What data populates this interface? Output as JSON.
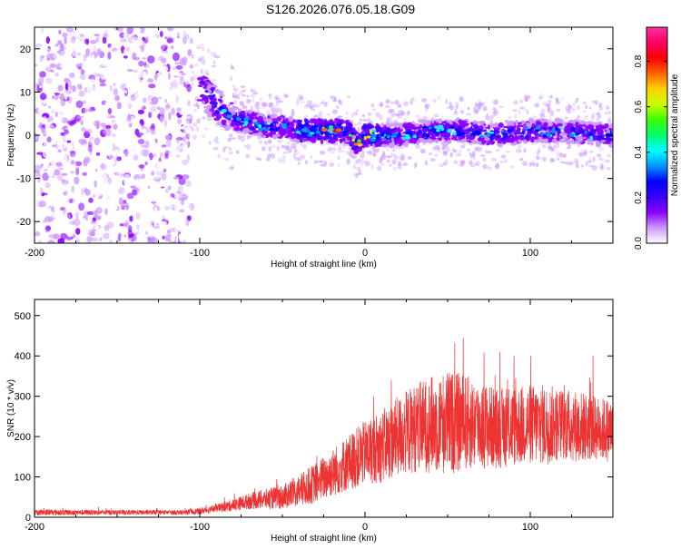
{
  "chart_data": [
    {
      "type": "heatmap",
      "title": "S126.2026.076.05.18.G09",
      "xlabel": "Height of straight line (km)",
      "ylabel": "Frequency (Hz)",
      "xlim": [
        -200,
        150
      ],
      "ylim": [
        -25,
        25
      ],
      "xticks": [
        -200,
        -100,
        0,
        100
      ],
      "xtick_labels": [
        "-200",
        "-100",
        "0",
        "100"
      ],
      "yticks": [
        -20,
        -10,
        0,
        10,
        20
      ],
      "ytick_labels": [
        "-20",
        "-10",
        "0",
        "10",
        "20"
      ],
      "ridge_center": {
        "x": [
          -200,
          -150,
          -100,
          -90,
          -80,
          -70,
          -60,
          -50,
          -40,
          -30,
          -20,
          -10,
          -5,
          0,
          10,
          20,
          40,
          60,
          80,
          100,
          120,
          150
        ],
        "y": [
          0,
          3,
          11,
          7,
          4,
          3,
          2,
          2,
          1,
          1,
          1,
          1,
          -2,
          0,
          0,
          0,
          1,
          1,
          0,
          1,
          1,
          0
        ]
      },
      "colorbar": {
        "label": "Normalized spectral amplitude",
        "range": [
          0,
          0.95
        ],
        "ticks": [
          0,
          0.2,
          0.4,
          0.6,
          0.8
        ],
        "tick_labels": [
          "0.0",
          "0.2",
          "0.4",
          "0.6",
          "0.8"
        ],
        "colors": [
          "#ffffff",
          "#cc99ff",
          "#8a00ff",
          "#3c00ff",
          "#0000ff",
          "#0096ff",
          "#00ffff",
          "#00ff6e",
          "#3cff00",
          "#c8ff00",
          "#ffd200",
          "#ff6400",
          "#ff0000",
          "#ff0064",
          "#ff32a0"
        ]
      }
    },
    {
      "type": "line",
      "xlabel": "Height of straight line (km)",
      "ylabel": "SNR (10 * v/v)",
      "xlim": [
        -200,
        150
      ],
      "ylim": [
        0,
        540
      ],
      "xticks": [
        -200,
        -100,
        0,
        100
      ],
      "xtick_labels": [
        "-200",
        "-100",
        "0",
        "100"
      ],
      "yticks": [
        0,
        100,
        200,
        300,
        400,
        500
      ],
      "ytick_labels": [
        "0",
        "100",
        "200",
        "300",
        "400",
        "500"
      ],
      "color": "#ee3333",
      "series": [
        {
          "name": "SNR",
          "envelope_x": [
            -200,
            -150,
            -110,
            -100,
            -90,
            -80,
            -70,
            -60,
            -50,
            -40,
            -30,
            -20,
            -10,
            0,
            10,
            20,
            30,
            40,
            50,
            60,
            70,
            80,
            90,
            100,
            110,
            120,
            130,
            140,
            150
          ],
          "envelope_mean": [
            12,
            12,
            12,
            15,
            22,
            30,
            40,
            45,
            50,
            65,
            85,
            110,
            135,
            160,
            175,
            200,
            220,
            230,
            235,
            235,
            230,
            220,
            225,
            230,
            230,
            230,
            225,
            220,
            215
          ],
          "envelope_spread": [
            8,
            6,
            6,
            8,
            10,
            15,
            20,
            25,
            30,
            40,
            50,
            60,
            70,
            80,
            90,
            100,
            110,
            120,
            130,
            120,
            110,
            100,
            100,
            100,
            100,
            90,
            90,
            80,
            80
          ]
        }
      ]
    }
  ]
}
